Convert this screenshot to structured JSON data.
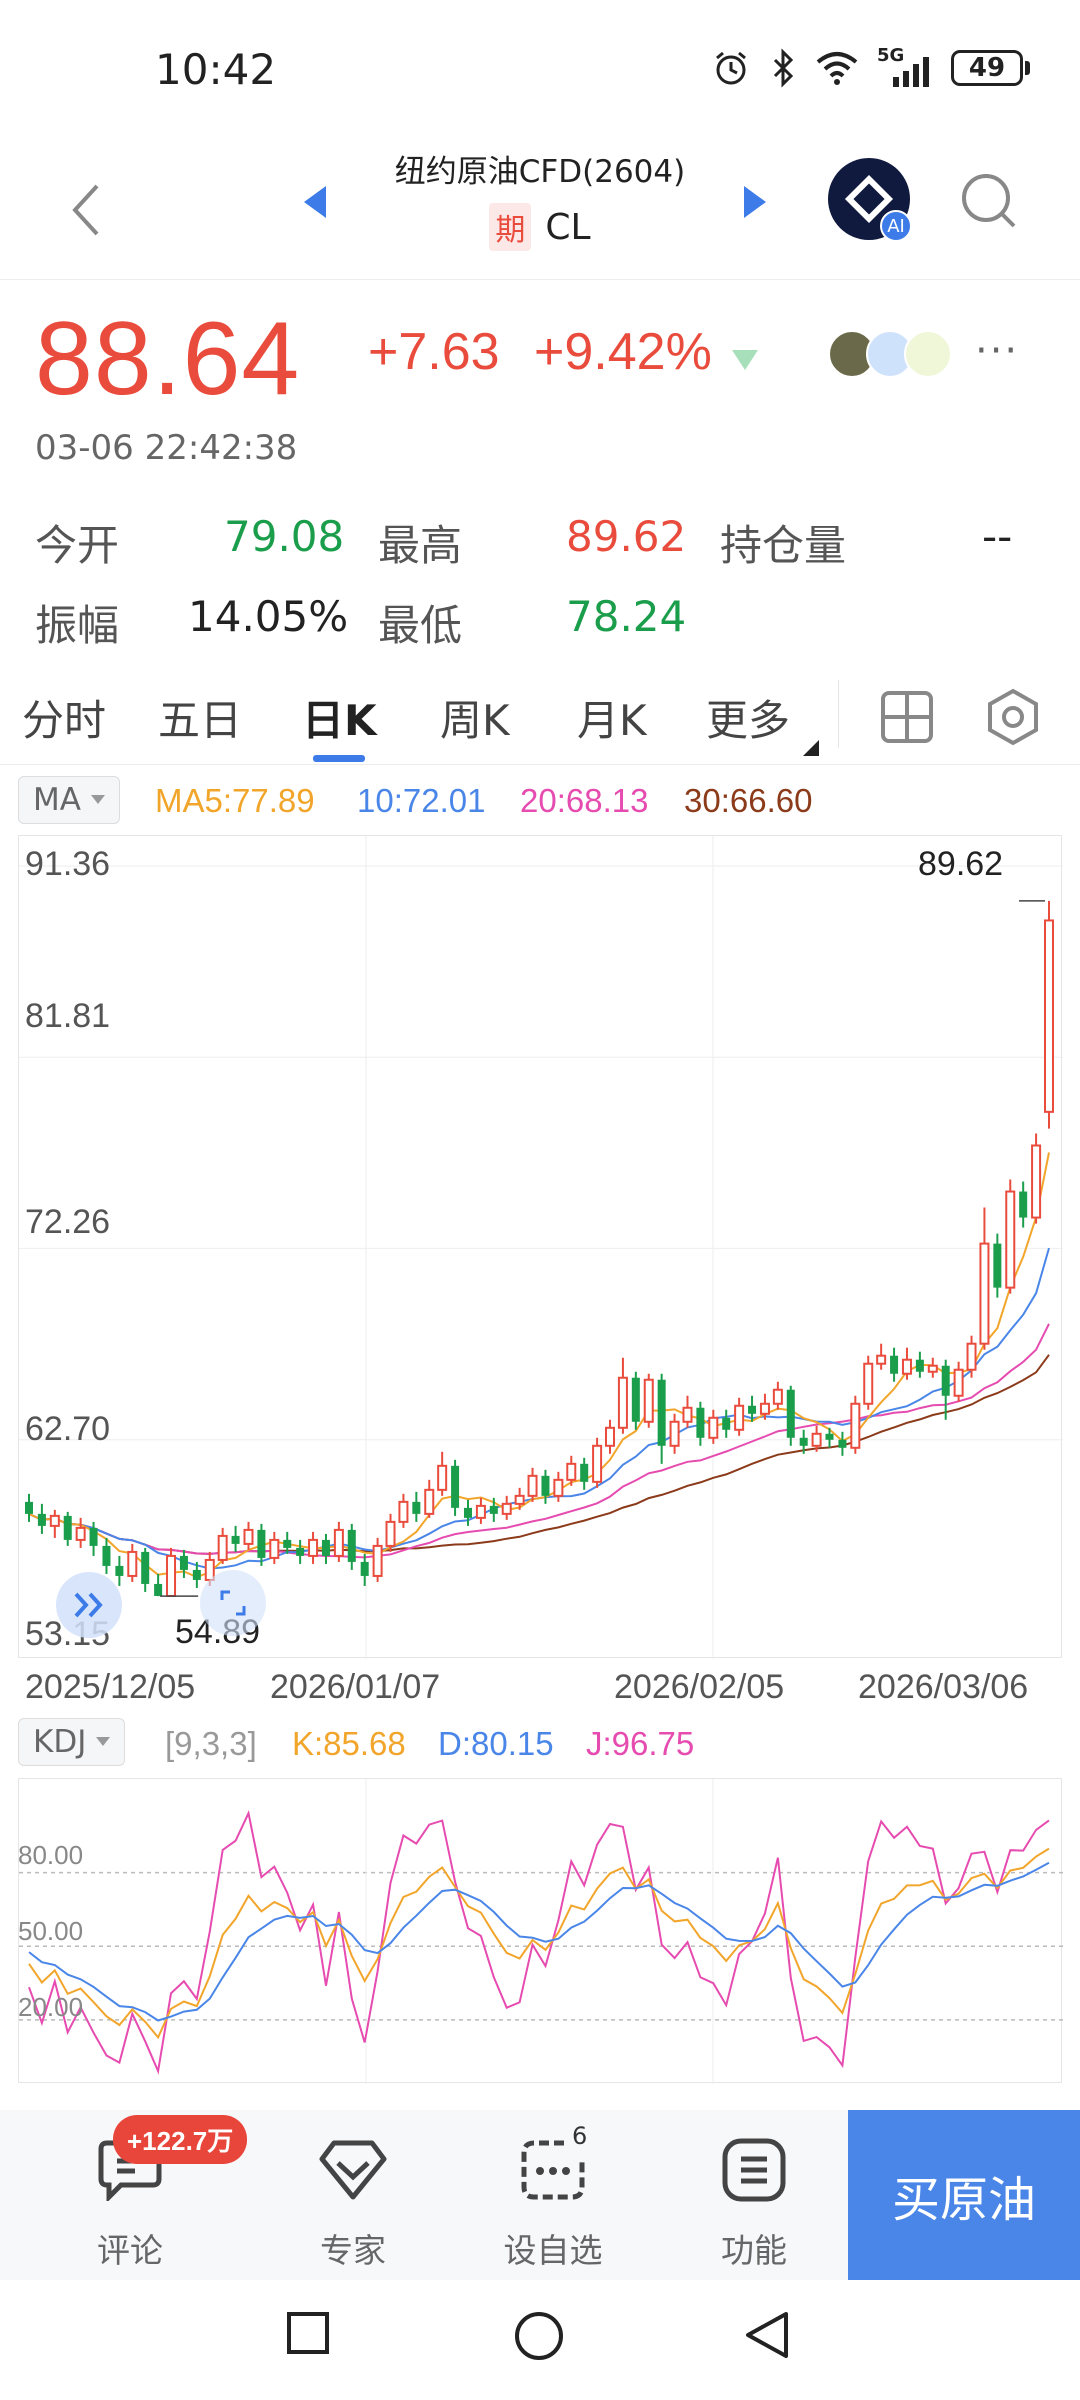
{
  "status": {
    "time": "10:42",
    "network": "5G",
    "battery": "49"
  },
  "header": {
    "title": "纽约原油CFD(2604)",
    "badge": "期",
    "symbol": "CL",
    "ai_label": "AI"
  },
  "price": {
    "last": "88.64",
    "change": "+7.63",
    "change_pct": "+9.42%",
    "timestamp": "03-06 22:42:38",
    "more": "···"
  },
  "stats": {
    "open_label": "今开",
    "open": "79.08",
    "high_label": "最高",
    "high": "89.62",
    "oi_label": "持仓量",
    "oi": "--",
    "amp_label": "振幅",
    "amp": "14.05%",
    "low_label": "最低",
    "low": "78.24"
  },
  "tabs": [
    {
      "label": "分时"
    },
    {
      "label": "五日"
    },
    {
      "label": "日K"
    },
    {
      "label": "周K"
    },
    {
      "label": "月K"
    },
    {
      "label": "更多"
    }
  ],
  "ma": {
    "selector": "MA",
    "ma5": "MA5:77.89",
    "ma10": "10:72.01",
    "ma20": "20:68.13",
    "ma30": "30:66.60",
    "colors": {
      "ma5": "#f2a52b",
      "ma10": "#4a86e8",
      "ma20": "#e64bb0",
      "ma30": "#8b3a1a",
      "up": "#e94b3c",
      "down": "#1b9e4b"
    }
  },
  "chart_data": {
    "type": "candlestick",
    "y_axis_labels": [
      "91.36",
      "81.81",
      "72.26",
      "62.70",
      "53.15"
    ],
    "ylim": [
      53.15,
      91.36
    ],
    "x_axis_labels": [
      "2025/12/05",
      "2026/01/07",
      "2026/02/05",
      "2026/03/06"
    ],
    "high_marker": "89.62",
    "low_marker": "54.89",
    "candles": [
      [
        59.6,
        59.0,
        60.0,
        58.6
      ],
      [
        59.0,
        58.4,
        59.5,
        58.0
      ],
      [
        58.4,
        58.9,
        59.2,
        57.8
      ],
      [
        58.9,
        57.7,
        59.1,
        57.4
      ],
      [
        57.7,
        58.3,
        58.8,
        57.3
      ],
      [
        58.3,
        57.4,
        58.6,
        56.9
      ],
      [
        57.4,
        56.4,
        57.8,
        56.0
      ],
      [
        56.4,
        55.9,
        56.9,
        55.4
      ],
      [
        55.9,
        57.1,
        57.5,
        55.6
      ],
      [
        57.1,
        55.5,
        57.3,
        55.1
      ],
      [
        55.5,
        54.9,
        56.0,
        54.89
      ],
      [
        54.9,
        56.9,
        57.3,
        54.9
      ],
      [
        56.9,
        56.2,
        57.2,
        55.8
      ],
      [
        56.2,
        55.7,
        56.6,
        55.3
      ],
      [
        55.7,
        56.7,
        57.1,
        55.4
      ],
      [
        56.7,
        57.9,
        58.3,
        56.5
      ],
      [
        57.9,
        57.5,
        58.4,
        57.1
      ],
      [
        57.5,
        58.2,
        58.6,
        57.2
      ],
      [
        58.2,
        56.8,
        58.5,
        56.4
      ],
      [
        56.8,
        57.7,
        58.1,
        56.5
      ],
      [
        57.7,
        57.3,
        58.1,
        57.0
      ],
      [
        57.3,
        56.9,
        57.7,
        56.5
      ],
      [
        56.9,
        57.7,
        58.1,
        56.5
      ],
      [
        57.7,
        56.9,
        58.0,
        56.5
      ],
      [
        56.9,
        58.2,
        58.6,
        56.6
      ],
      [
        58.2,
        56.6,
        58.5,
        56.2
      ],
      [
        56.6,
        55.9,
        57.0,
        55.4
      ],
      [
        55.9,
        57.4,
        57.8,
        55.6
      ],
      [
        57.4,
        58.6,
        59.0,
        57.1
      ],
      [
        58.6,
        59.6,
        60.0,
        58.3
      ],
      [
        59.6,
        59.0,
        60.1,
        58.6
      ],
      [
        59.0,
        60.2,
        60.7,
        58.8
      ],
      [
        60.2,
        61.4,
        62.1,
        59.9
      ],
      [
        61.4,
        59.3,
        61.7,
        58.9
      ],
      [
        59.3,
        58.8,
        59.7,
        58.4
      ],
      [
        58.8,
        59.4,
        59.8,
        58.5
      ],
      [
        59.4,
        59.0,
        59.8,
        58.6
      ],
      [
        59.0,
        59.5,
        59.9,
        58.7
      ],
      [
        59.5,
        59.9,
        60.3,
        59.2
      ],
      [
        59.9,
        60.9,
        61.3,
        59.6
      ],
      [
        60.9,
        59.9,
        61.2,
        59.5
      ],
      [
        59.9,
        60.7,
        61.1,
        59.6
      ],
      [
        60.7,
        61.5,
        61.9,
        60.4
      ],
      [
        61.5,
        60.6,
        61.8,
        60.2
      ],
      [
        60.6,
        62.4,
        62.8,
        60.3
      ],
      [
        62.4,
        63.3,
        63.7,
        62.0
      ],
      [
        63.3,
        65.8,
        66.8,
        63.0
      ],
      [
        65.8,
        63.6,
        66.1,
        63.2
      ],
      [
        63.6,
        65.7,
        66.0,
        63.3
      ],
      [
        65.7,
        62.4,
        66.0,
        61.5
      ],
      [
        62.4,
        63.6,
        64.0,
        62.0
      ],
      [
        63.6,
        64.3,
        64.9,
        63.3
      ],
      [
        64.3,
        62.8,
        64.6,
        62.4
      ],
      [
        62.8,
        63.8,
        64.2,
        62.5
      ],
      [
        63.8,
        63.2,
        64.2,
        62.8
      ],
      [
        63.2,
        64.4,
        64.8,
        62.9
      ],
      [
        64.4,
        64.0,
        64.9,
        63.6
      ],
      [
        64.0,
        64.5,
        65.0,
        63.7
      ],
      [
        64.5,
        65.2,
        65.6,
        64.2
      ],
      [
        65.2,
        62.8,
        65.4,
        62.4
      ],
      [
        62.8,
        62.4,
        63.2,
        62.0
      ],
      [
        62.4,
        63.0,
        63.4,
        62.1
      ],
      [
        63.0,
        62.7,
        63.3,
        62.3
      ],
      [
        62.7,
        62.3,
        63.1,
        61.9
      ],
      [
        62.3,
        64.5,
        64.9,
        62.0
      ],
      [
        64.5,
        66.5,
        66.9,
        64.2
      ],
      [
        66.5,
        66.9,
        67.5,
        66.2
      ],
      [
        66.9,
        66.0,
        67.3,
        65.6
      ],
      [
        66.0,
        66.7,
        67.3,
        65.7
      ],
      [
        66.7,
        66.1,
        67.1,
        65.8
      ],
      [
        66.1,
        66.4,
        66.8,
        65.8
      ],
      [
        66.4,
        64.9,
        66.7,
        63.7
      ],
      [
        64.9,
        66.2,
        66.6,
        64.6
      ],
      [
        66.2,
        67.5,
        67.9,
        65.8
      ],
      [
        67.5,
        72.5,
        74.3,
        67.2
      ],
      [
        72.5,
        70.3,
        73.0,
        69.8
      ],
      [
        70.3,
        75.1,
        75.7,
        70.0
      ],
      [
        75.1,
        73.8,
        75.6,
        73.3
      ],
      [
        73.8,
        77.4,
        78.0,
        73.5
      ],
      [
        79.08,
        88.64,
        89.62,
        78.24
      ]
    ]
  },
  "kdj": {
    "selector": "KDJ",
    "params": "[9,3,3]",
    "k": "K:85.68",
    "d": "D:80.15",
    "j": "J:96.75",
    "y_axis_labels": [
      "80.00",
      "50.00",
      "20.00"
    ],
    "colors": {
      "k": "#f2a52b",
      "d": "#4a86e8",
      "j": "#e64bb0"
    }
  },
  "bottom_nav": {
    "comment_label": "评论",
    "comment_badge": "+122.7万",
    "expert_label": "专家",
    "watch_label": "设自选",
    "watch_count": "6",
    "func_label": "功能",
    "buy_label": "买原油"
  }
}
